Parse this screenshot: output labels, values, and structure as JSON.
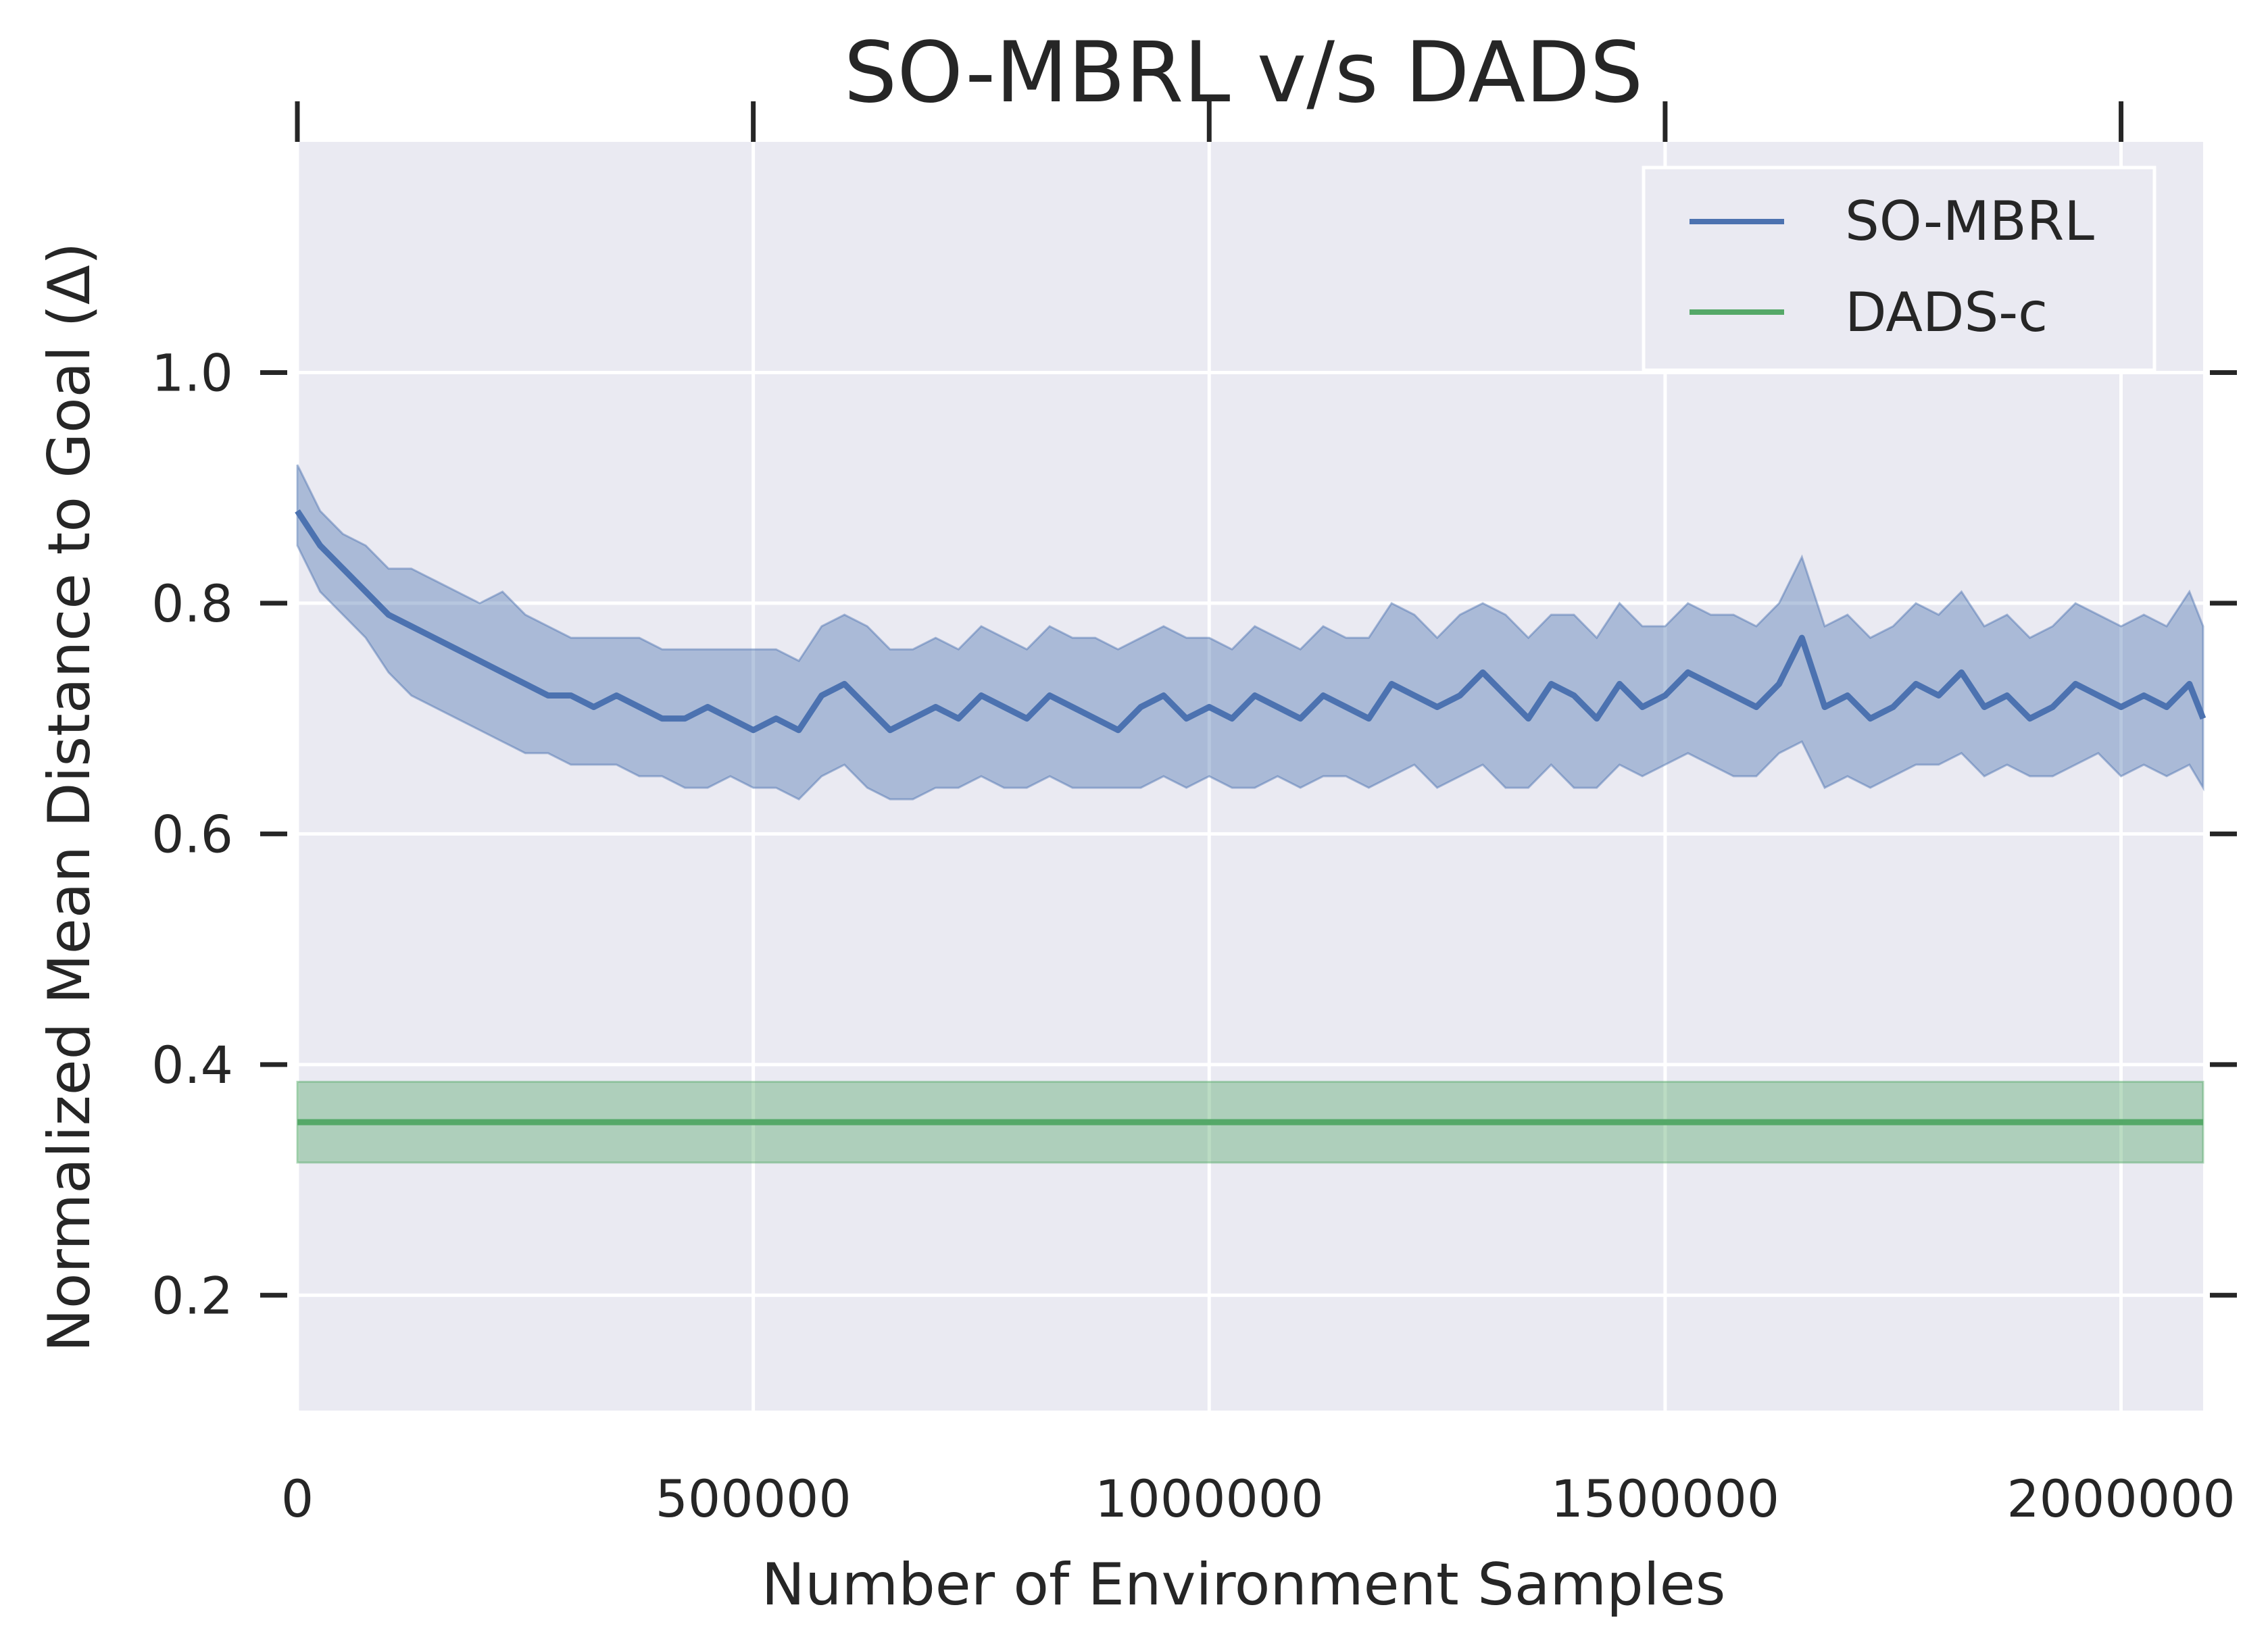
{
  "colors": {
    "background": "#EAEAF2",
    "grid": "#FFFFFF",
    "so_mbrl": "#4C72B0",
    "dads": "#55A868",
    "text": "#262626"
  },
  "chart_data": {
    "type": "line",
    "title": "SO-MBRL v/s DADS",
    "xlabel": "Number of Environment Samples",
    "ylabel": "Normalized Mean Distance to Goal (Δ)",
    "xlim": [
      0,
      2090000
    ],
    "ylim": [
      0.1,
      1.2
    ],
    "xticks": [
      0,
      500000,
      1000000,
      1500000,
      2000000
    ],
    "xtick_labels": [
      "0",
      "500000",
      "1000000",
      "1500000",
      "2000000"
    ],
    "yticks": [
      0.2,
      0.4,
      0.6,
      0.8,
      1.0
    ],
    "ytick_labels": [
      "0.2",
      "0.4",
      "0.6",
      "0.8",
      "1.0"
    ],
    "grid": true,
    "legend_position": "top-right",
    "series": [
      {
        "name": "SO-MBRL",
        "color": "#4C72B0",
        "x": [
          0,
          25000,
          50000,
          75000,
          100000,
          125000,
          150000,
          175000,
          200000,
          225000,
          250000,
          275000,
          300000,
          325000,
          350000,
          375000,
          400000,
          425000,
          450000,
          475000,
          500000,
          525000,
          550000,
          575000,
          600000,
          625000,
          650000,
          675000,
          700000,
          725000,
          750000,
          775000,
          800000,
          825000,
          850000,
          875000,
          900000,
          925000,
          950000,
          975000,
          1000000,
          1025000,
          1050000,
          1075000,
          1100000,
          1125000,
          1150000,
          1175000,
          1200000,
          1225000,
          1250000,
          1275000,
          1300000,
          1325000,
          1350000,
          1375000,
          1400000,
          1425000,
          1450000,
          1475000,
          1500000,
          1525000,
          1550000,
          1575000,
          1600000,
          1625000,
          1650000,
          1675000,
          1700000,
          1725000,
          1750000,
          1775000,
          1800000,
          1825000,
          1850000,
          1875000,
          1900000,
          1925000,
          1950000,
          1975000,
          2000000,
          2025000,
          2050000,
          2075000,
          2090000
        ],
        "mean": [
          0.88,
          0.85,
          0.83,
          0.81,
          0.79,
          0.78,
          0.77,
          0.76,
          0.75,
          0.74,
          0.73,
          0.72,
          0.72,
          0.71,
          0.72,
          0.71,
          0.7,
          0.7,
          0.71,
          0.7,
          0.69,
          0.7,
          0.69,
          0.72,
          0.73,
          0.71,
          0.69,
          0.7,
          0.71,
          0.7,
          0.72,
          0.71,
          0.7,
          0.72,
          0.71,
          0.7,
          0.69,
          0.71,
          0.72,
          0.7,
          0.71,
          0.7,
          0.72,
          0.71,
          0.7,
          0.72,
          0.71,
          0.7,
          0.73,
          0.72,
          0.71,
          0.72,
          0.74,
          0.72,
          0.7,
          0.73,
          0.72,
          0.7,
          0.73,
          0.71,
          0.72,
          0.74,
          0.73,
          0.72,
          0.71,
          0.73,
          0.77,
          0.71,
          0.72,
          0.7,
          0.71,
          0.73,
          0.72,
          0.74,
          0.71,
          0.72,
          0.7,
          0.71,
          0.73,
          0.72,
          0.71,
          0.72,
          0.71,
          0.73,
          0.7
        ],
        "lower": [
          0.85,
          0.81,
          0.79,
          0.77,
          0.74,
          0.72,
          0.71,
          0.7,
          0.69,
          0.68,
          0.67,
          0.67,
          0.66,
          0.66,
          0.66,
          0.65,
          0.65,
          0.64,
          0.64,
          0.65,
          0.64,
          0.64,
          0.63,
          0.65,
          0.66,
          0.64,
          0.63,
          0.63,
          0.64,
          0.64,
          0.65,
          0.64,
          0.64,
          0.65,
          0.64,
          0.64,
          0.64,
          0.64,
          0.65,
          0.64,
          0.65,
          0.64,
          0.64,
          0.65,
          0.64,
          0.65,
          0.65,
          0.64,
          0.65,
          0.66,
          0.64,
          0.65,
          0.66,
          0.64,
          0.64,
          0.66,
          0.64,
          0.64,
          0.66,
          0.65,
          0.66,
          0.67,
          0.66,
          0.65,
          0.65,
          0.67,
          0.68,
          0.64,
          0.65,
          0.64,
          0.65,
          0.66,
          0.66,
          0.67,
          0.65,
          0.66,
          0.65,
          0.65,
          0.66,
          0.67,
          0.65,
          0.66,
          0.65,
          0.66,
          0.64
        ],
        "upper": [
          0.92,
          0.88,
          0.86,
          0.85,
          0.83,
          0.83,
          0.82,
          0.81,
          0.8,
          0.81,
          0.79,
          0.78,
          0.77,
          0.77,
          0.77,
          0.77,
          0.76,
          0.76,
          0.76,
          0.76,
          0.76,
          0.76,
          0.75,
          0.78,
          0.79,
          0.78,
          0.76,
          0.76,
          0.77,
          0.76,
          0.78,
          0.77,
          0.76,
          0.78,
          0.77,
          0.77,
          0.76,
          0.77,
          0.78,
          0.77,
          0.77,
          0.76,
          0.78,
          0.77,
          0.76,
          0.78,
          0.77,
          0.77,
          0.8,
          0.79,
          0.77,
          0.79,
          0.8,
          0.79,
          0.77,
          0.79,
          0.79,
          0.77,
          0.8,
          0.78,
          0.78,
          0.8,
          0.79,
          0.79,
          0.78,
          0.8,
          0.84,
          0.78,
          0.79,
          0.77,
          0.78,
          0.8,
          0.79,
          0.81,
          0.78,
          0.79,
          0.77,
          0.78,
          0.8,
          0.79,
          0.78,
          0.79,
          0.78,
          0.81,
          0.78
        ]
      },
      {
        "name": "DADS-c",
        "color": "#55A868",
        "x": [
          0,
          2090000
        ],
        "mean": [
          0.35,
          0.35
        ],
        "lower": [
          0.315,
          0.315
        ],
        "upper": [
          0.385,
          0.385
        ]
      }
    ]
  }
}
